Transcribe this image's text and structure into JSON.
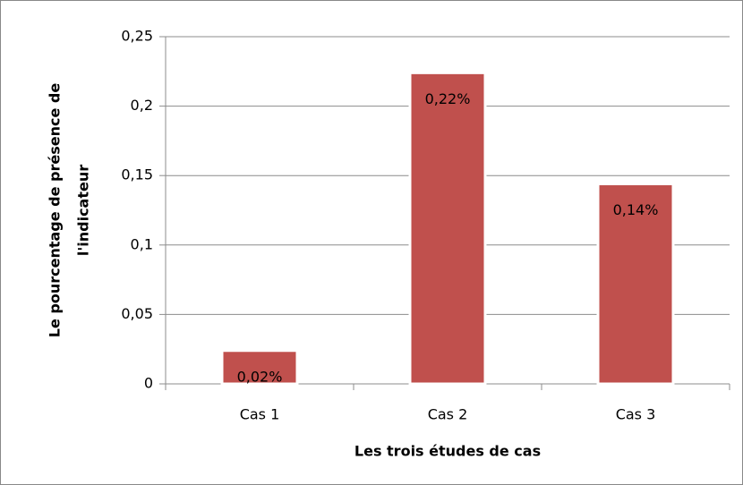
{
  "chart_data": {
    "type": "bar",
    "xlabel": "Les trois études de cas",
    "ylabel": [
      "Le pourcentage de présence de",
      "l'indicateur"
    ],
    "categories": [
      "Cas 1",
      "Cas 2",
      "Cas 3"
    ],
    "values": [
      0.024,
      0.224,
      0.144
    ],
    "value_labels": [
      "0,02%",
      "0,22%",
      "0,14%"
    ],
    "color": "#c0504d",
    "ylim": [
      0,
      0.25
    ],
    "yticks": [
      0,
      {
        "value": 0.05,
        "label": "0,05"
      },
      {
        "value": 0.1,
        "label": "0,1"
      },
      {
        "value": 0.15,
        "label": "0,15"
      },
      {
        "value": 0.2,
        "label": "0,2"
      },
      {
        "value": 0.25,
        "label": "0,25"
      }
    ],
    "grid": true
  }
}
